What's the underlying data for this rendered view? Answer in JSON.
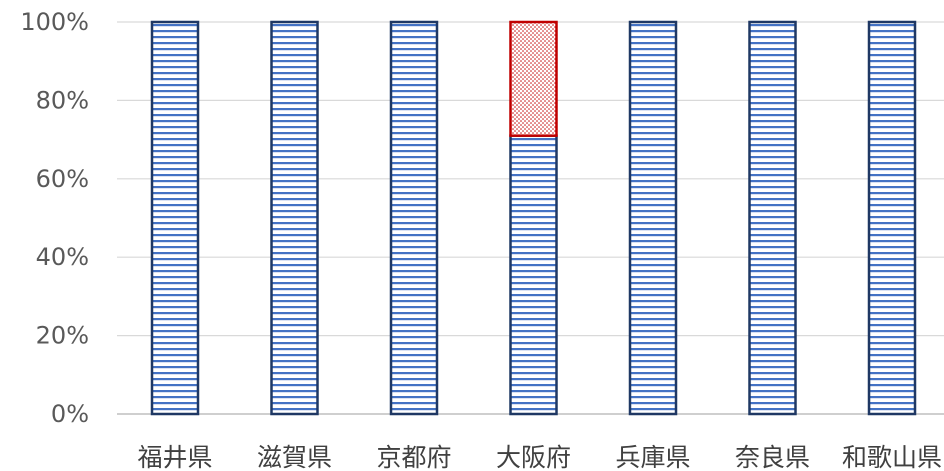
{
  "chart_data": {
    "type": "bar",
    "stacked": true,
    "percent_stacked": true,
    "categories": [
      "福井県",
      "滋賀県",
      "京都府",
      "大阪府",
      "兵庫県",
      "奈良県",
      "和歌山県"
    ],
    "series": [
      {
        "values": [
          100,
          100,
          100,
          71,
          100,
          100,
          100
        ],
        "fill_color": "#ffffff",
        "stripe_color": "#4472c4",
        "border_color": "#1f3864",
        "pattern": "horizontal-lines"
      },
      {
        "values": [
          0,
          0,
          0,
          29,
          0,
          0,
          0
        ],
        "fill_color": "#ffffff",
        "stripe_color": "#c00000",
        "border_color": "#c00000",
        "pattern": "dots"
      }
    ],
    "y_ticks": [
      "0%",
      "20%",
      "40%",
      "60%",
      "80%",
      "100%"
    ],
    "ylim": [
      0,
      100
    ],
    "title": "",
    "xlabel": "",
    "ylabel": "",
    "grid": true,
    "legend": "none"
  }
}
